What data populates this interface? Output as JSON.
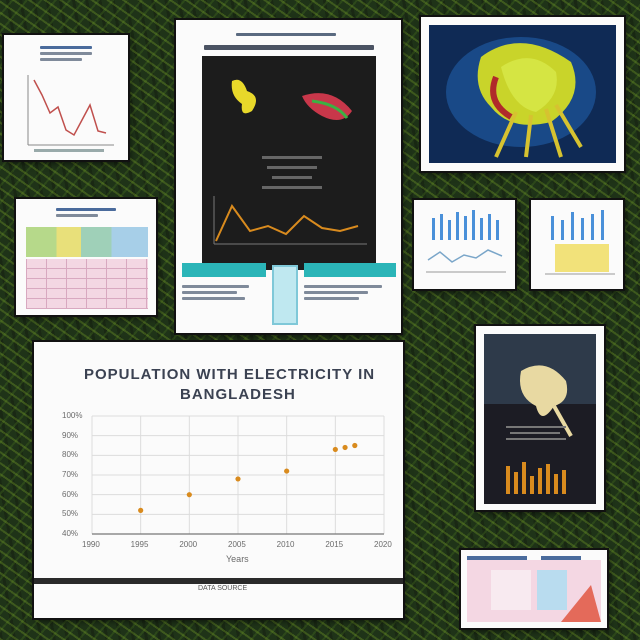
{
  "main_chart": {
    "title_line1": "POPULATION WITH ELECTRICITY IN",
    "title_line2": "BANGLADESH",
    "y_ticks": [
      "100%",
      "90%",
      "80%",
      "70%",
      "60%",
      "50%",
      "40%"
    ],
    "x_ticks": [
      "1990",
      "1995",
      "2000",
      "2005",
      "2010",
      "2015",
      "2020"
    ],
    "x_axis_label": "Years",
    "footer": "DATA SOURCE",
    "dot_color": "#d98b1e"
  },
  "chart_data": {
    "type": "scatter",
    "x": [
      1995,
      2000,
      2005,
      2010,
      2015,
      2016,
      2017
    ],
    "y": [
      52,
      60,
      68,
      72,
      83,
      84,
      85
    ],
    "xlim": [
      1990,
      2020
    ],
    "ylim": [
      40,
      100
    ],
    "xlabel": "Years",
    "grid": true
  },
  "colors": {
    "background": "#1f3318",
    "accent": "#d98b1e",
    "teal": "#2bb5b8"
  }
}
